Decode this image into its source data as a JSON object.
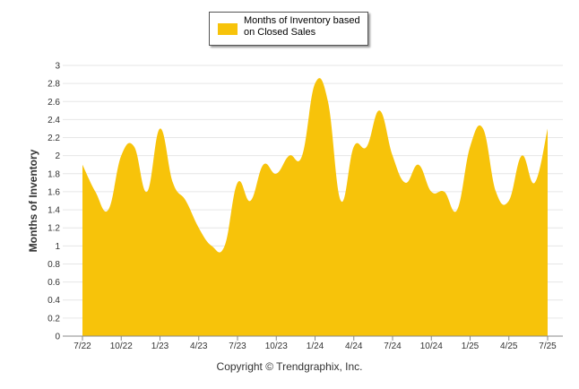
{
  "legend": {
    "label": "Months of Inventory based on Closed Sales"
  },
  "footer": {
    "copyright": "Copyright © Trendgraphix, Inc."
  },
  "colors": {
    "fill": "#F7C30A",
    "grid": "#e6e6e6",
    "axis": "#888888"
  },
  "chart_data": {
    "type": "area",
    "title": "",
    "xlabel": "",
    "ylabel": "Months of Inventory",
    "ylim": [
      0,
      3
    ],
    "yticks": [
      0,
      0.2,
      0.4,
      0.6,
      0.8,
      1,
      1.2,
      1.4,
      1.6,
      1.8,
      2,
      2.2,
      2.4,
      2.6,
      2.8,
      3
    ],
    "ytick_labels": [
      "0",
      "0.2",
      "0.4",
      "0.6",
      "0.8",
      "1",
      "1.2",
      "1.4",
      "1.6",
      "1.8",
      "2",
      "2.2",
      "2.4",
      "2.6",
      "2.8",
      "3"
    ],
    "x": [
      "7/22",
      "8/22",
      "9/22",
      "10/22",
      "11/22",
      "12/22",
      "1/23",
      "2/23",
      "3/23",
      "4/23",
      "5/23",
      "6/23",
      "7/23",
      "8/23",
      "9/23",
      "10/23",
      "11/23",
      "12/23",
      "1/24",
      "2/24",
      "3/24",
      "4/24",
      "5/24",
      "6/24",
      "7/24",
      "8/24",
      "9/24",
      "10/24",
      "11/24",
      "12/24",
      "1/25",
      "2/25",
      "3/25",
      "4/25",
      "5/25",
      "6/25",
      "7/25"
    ],
    "xtick_labels": [
      "7/22",
      "10/22",
      "1/23",
      "4/23",
      "7/23",
      "10/23",
      "1/24",
      "4/24",
      "7/24",
      "10/24",
      "1/25",
      "4/25",
      "7/25"
    ],
    "grid": true,
    "legend_position": "top-center",
    "series": [
      {
        "name": "Months of Inventory based on Closed Sales",
        "values": [
          1.9,
          1.6,
          1.4,
          2.0,
          2.1,
          1.6,
          2.3,
          1.7,
          1.5,
          1.2,
          1.0,
          1.0,
          1.7,
          1.5,
          1.9,
          1.8,
          2.0,
          2.0,
          2.8,
          2.6,
          1.5,
          2.1,
          2.1,
          2.5,
          2.0,
          1.7,
          1.9,
          1.6,
          1.6,
          1.4,
          2.1,
          2.3,
          1.6,
          1.5,
          2.0,
          1.7,
          2.3
        ]
      }
    ]
  }
}
